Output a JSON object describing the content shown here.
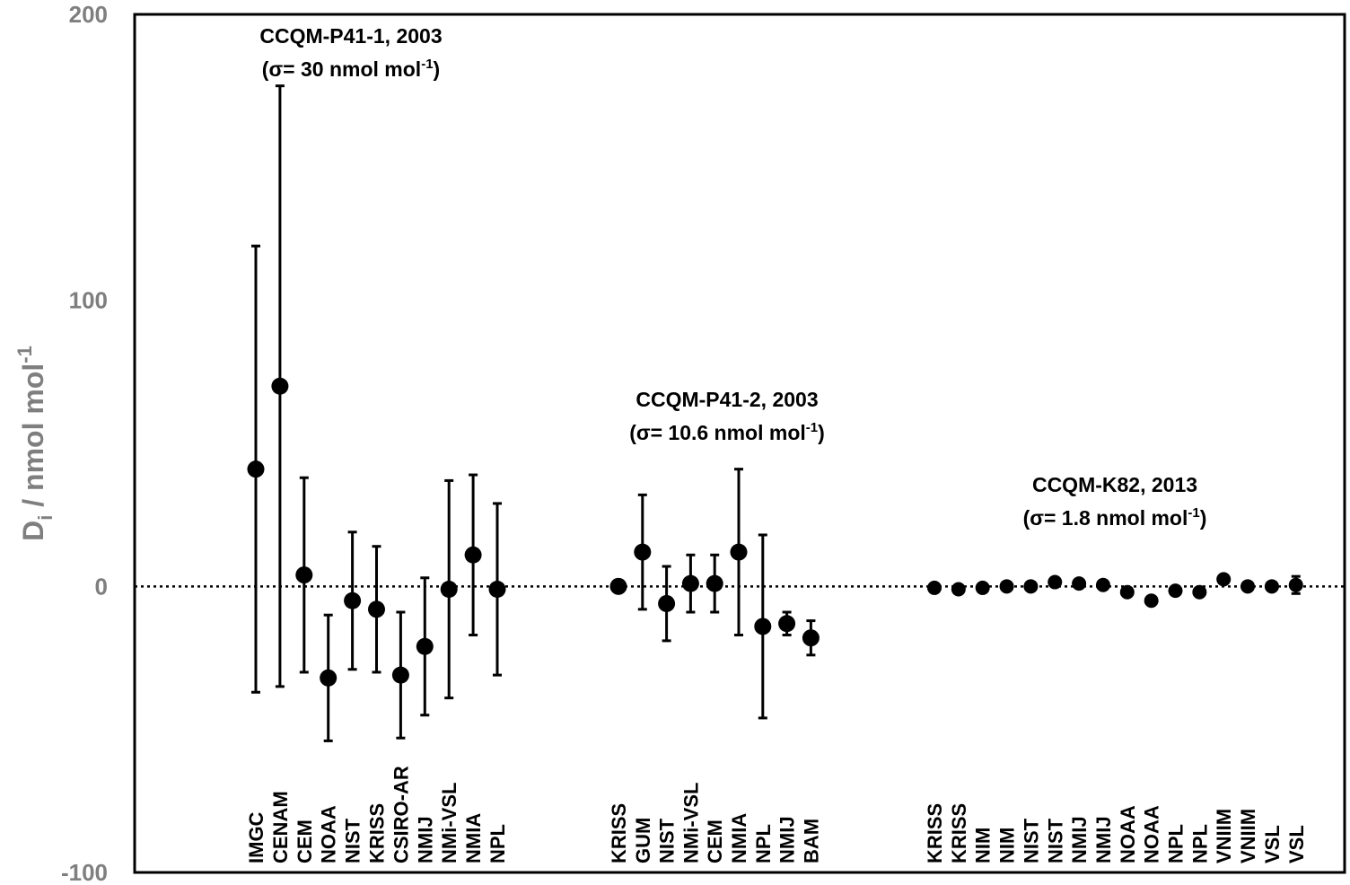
{
  "chart_data": {
    "type": "scatter",
    "title": "",
    "ylabel": {
      "main": "D",
      "sub": "i",
      "unit": " / nmol mol",
      "sup": "-1"
    },
    "ylim": [
      -100,
      200
    ],
    "yticks": [
      -100,
      0,
      100,
      200
    ],
    "zero_line": "dotted",
    "groups": [
      {
        "label": "CCQM-P41-1, 2003",
        "sigma_prefix": "(σ= 30 nmol mol",
        "sigma_sup": "-1",
        "sigma_suffix": ")",
        "points": [
          {
            "name": "IMGC",
            "y": 41,
            "err": 78
          },
          {
            "name": "CENAM",
            "y": 70,
            "err": 105
          },
          {
            "name": "CEM",
            "y": 4,
            "err": 34
          },
          {
            "name": "NOAA",
            "y": -32,
            "err": 22
          },
          {
            "name": "NIST",
            "y": -5,
            "err": 24
          },
          {
            "name": "KRISS",
            "y": -8,
            "err": 22
          },
          {
            "name": "CSIRO-AR",
            "y": -31,
            "err": 22
          },
          {
            "name": "NMIJ",
            "y": -21,
            "err": 24
          },
          {
            "name": "NMi-VSL",
            "y": -1,
            "err": 38
          },
          {
            "name": "NMIA",
            "y": 11,
            "err": 28
          },
          {
            "name": "NPL",
            "y": -1,
            "err": 30
          }
        ]
      },
      {
        "label": "CCQM-P41-2, 2003",
        "sigma_prefix": "(σ= 10.6 nmol mol",
        "sigma_sup": "-1",
        "sigma_suffix": ")",
        "points": [
          {
            "name": "KRISS",
            "y": 0,
            "err": 2
          },
          {
            "name": "GUM",
            "y": 12,
            "err": 20
          },
          {
            "name": "NIST",
            "y": -6,
            "err": 13
          },
          {
            "name": "NMi-VSL",
            "y": 1,
            "err": 10
          },
          {
            "name": "CEM",
            "y": 1,
            "err": 10
          },
          {
            "name": "NMIA",
            "y": 12,
            "err": 29
          },
          {
            "name": "NPL",
            "y": -14,
            "err": 32
          },
          {
            "name": "NMIJ",
            "y": -13,
            "err": 4
          },
          {
            "name": "BAM",
            "y": -18,
            "err": 6
          }
        ]
      },
      {
        "label": "CCQM-K82, 2013",
        "sigma_prefix": "(σ= 1.8 nmol mol",
        "sigma_sup": "-1",
        "sigma_suffix": ")",
        "points": [
          {
            "name": "KRISS",
            "y": -0.5,
            "err": 1
          },
          {
            "name": "KRISS",
            "y": -1,
            "err": 1
          },
          {
            "name": "NIM",
            "y": -0.5,
            "err": 1
          },
          {
            "name": "NIM",
            "y": 0,
            "err": 1
          },
          {
            "name": "NIST",
            "y": 0,
            "err": 1
          },
          {
            "name": "NIST",
            "y": 1.5,
            "err": 1
          },
          {
            "name": "NMIJ",
            "y": 1,
            "err": 1
          },
          {
            "name": "NMIJ",
            "y": 0.5,
            "err": 1
          },
          {
            "name": "NOAA",
            "y": -2,
            "err": 1
          },
          {
            "name": "NOAA",
            "y": -5,
            "err": 1
          },
          {
            "name": "NPL",
            "y": -1.5,
            "err": 1
          },
          {
            "name": "NPL",
            "y": -2,
            "err": 1.5
          },
          {
            "name": "VNIIM",
            "y": 2.5,
            "err": 1
          },
          {
            "name": "VNIIM",
            "y": 0,
            "err": 1
          },
          {
            "name": "VSL",
            "y": 0,
            "err": 1
          },
          {
            "name": "VSL",
            "y": 0.5,
            "err": 3
          }
        ]
      }
    ]
  }
}
